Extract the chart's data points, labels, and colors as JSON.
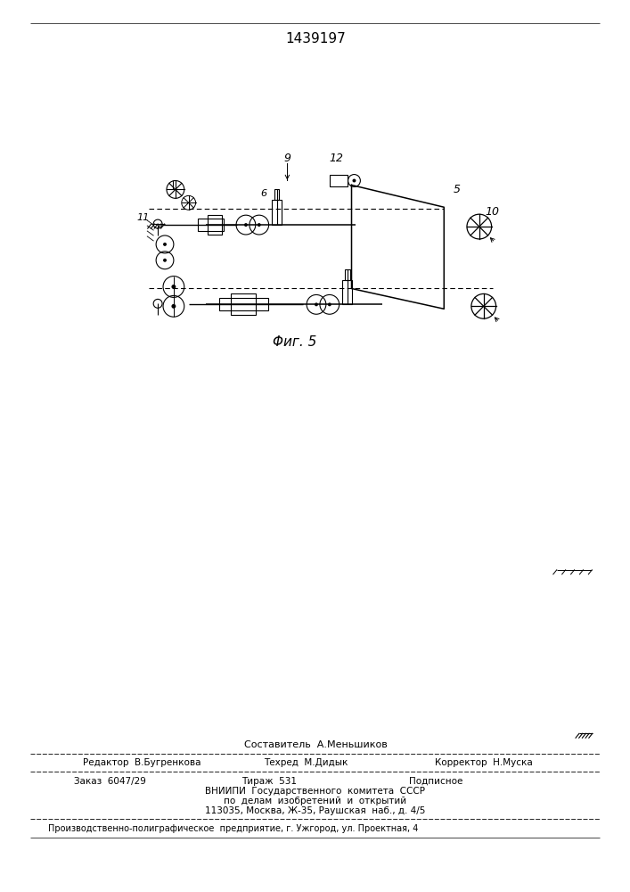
{
  "patent_number": "1439197",
  "fig_caption": "Φиг. 5",
  "background_color": "#ffffff",
  "line_color": "#000000",
  "footer": {
    "compiler": "Составитель  А.Меньшиков",
    "editor": "Редактор  В.Бугренкова",
    "techred": "Техред  М.Дидык",
    "corrector": "Корректор  Н.Муска",
    "order": "Заказ  6047/29",
    "tirazh": "Тираж  531",
    "podpisnoe": "Подписное",
    "vniiipi1": "ВНИИПИ  Государственного  комитета  СССР",
    "vniiipi2": "по  делам  изобретений  и  открытий",
    "vniiipi3": "113035, Москва, Ж-35, Раушская  наб., д. 4/5",
    "typog": "Производственно-полиграфическое  предприятие, г. Ужгород, ул. Проектная, 4"
  }
}
